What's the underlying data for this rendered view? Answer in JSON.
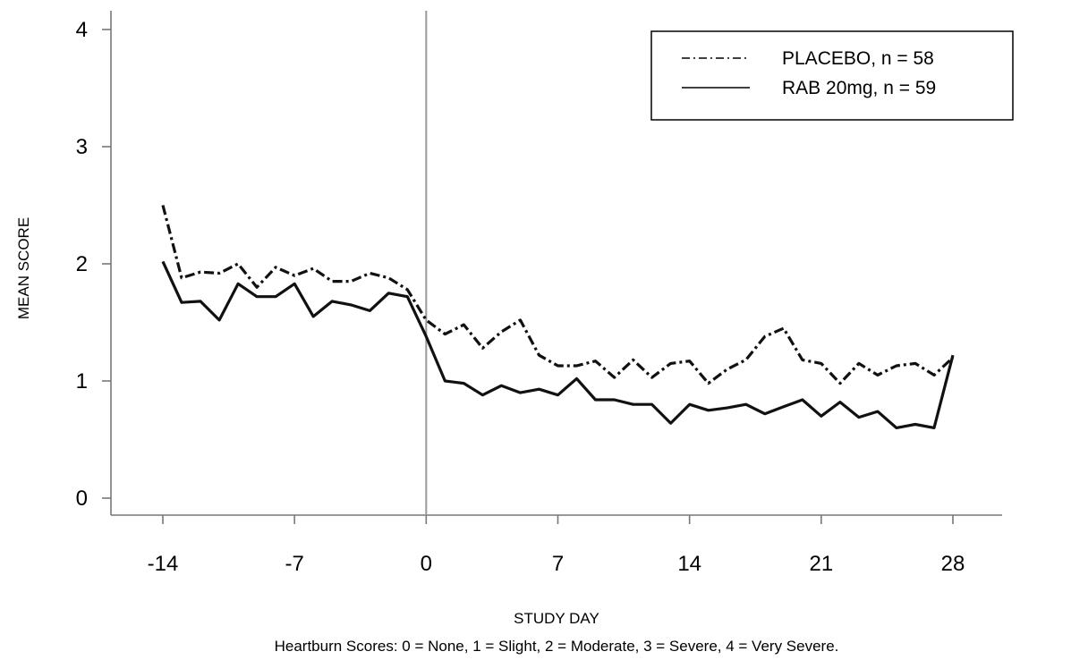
{
  "chart_data": {
    "type": "line",
    "title": "",
    "xlabel": "STUDY DAY",
    "ylabel": "MEAN SCORE",
    "caption": "Heartburn Scores: 0 = None, 1 = Slight, 2 = Moderate, 3 = Severe, 4 = Very Severe.",
    "xlim": [
      -14,
      28
    ],
    "ylim": [
      0,
      4
    ],
    "x_ticks": [
      "-14",
      "-7",
      "0",
      "7",
      "14",
      "21",
      "28"
    ],
    "y_ticks": [
      "0",
      "1",
      "2",
      "3",
      "4"
    ],
    "reference_line_x": 0,
    "grid": false,
    "legend_position": "top-right",
    "x": [
      -14,
      -13,
      -12,
      -11,
      -10,
      -9,
      -8,
      -7,
      -6,
      -5,
      -4,
      -3,
      -2,
      -1,
      0,
      1,
      2,
      3,
      4,
      5,
      6,
      7,
      8,
      9,
      10,
      11,
      12,
      13,
      14,
      15,
      16,
      17,
      18,
      19,
      20,
      21,
      22,
      23,
      24,
      25,
      26,
      27,
      28
    ],
    "series": [
      {
        "name": "PLACEBO, n = 58",
        "style": "dash-dot",
        "color": "#111111",
        "values": [
          2.5,
          1.88,
          1.93,
          1.92,
          2.0,
          1.8,
          1.97,
          1.9,
          1.96,
          1.85,
          1.85,
          1.92,
          1.88,
          1.78,
          1.52,
          1.4,
          1.48,
          1.28,
          1.42,
          1.52,
          1.22,
          1.13,
          1.13,
          1.17,
          1.03,
          1.18,
          1.03,
          1.15,
          1.17,
          0.98,
          1.1,
          1.18,
          1.38,
          1.45,
          1.18,
          1.15,
          0.98,
          1.15,
          1.05,
          1.13,
          1.15,
          1.05,
          1.2
        ]
      },
      {
        "name": "RAB 20mg, n = 59",
        "style": "solid",
        "color": "#111111",
        "values": [
          2.02,
          1.67,
          1.68,
          1.52,
          1.83,
          1.72,
          1.72,
          1.83,
          1.55,
          1.68,
          1.65,
          1.6,
          1.75,
          1.72,
          1.38,
          1.0,
          0.98,
          0.88,
          0.96,
          0.9,
          0.93,
          0.88,
          1.02,
          0.84,
          0.84,
          0.8,
          0.8,
          0.64,
          0.8,
          0.75,
          0.77,
          0.8,
          0.72,
          0.78,
          0.84,
          0.7,
          0.82,
          0.69,
          0.74,
          0.6,
          0.63,
          0.6,
          1.22
        ]
      }
    ]
  }
}
